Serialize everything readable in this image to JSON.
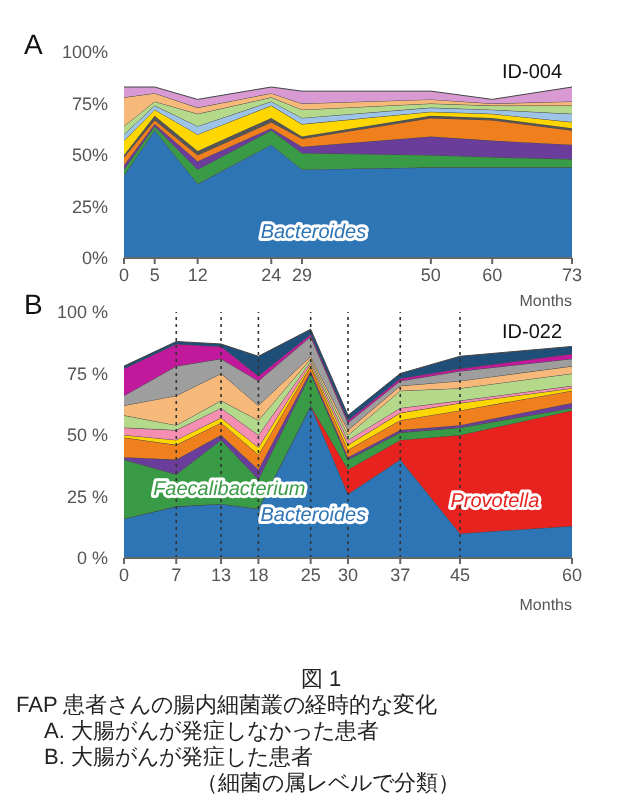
{
  "chart_data": [
    {
      "type": "area",
      "stacked": true,
      "title": "A",
      "subtitle": "ID-004",
      "xlabel": "Months",
      "x": [
        0,
        5,
        12,
        24,
        29,
        50,
        60,
        73
      ],
      "xlim": [
        0,
        73
      ],
      "xticks": [
        0,
        5,
        12,
        24,
        29,
        50,
        60,
        73
      ],
      "ylim": [
        0,
        100
      ],
      "yticks": [
        {
          "value": 0,
          "label": "0%"
        },
        {
          "value": 25,
          "label": "25%"
        },
        {
          "value": 50,
          "label": "50%"
        },
        {
          "value": 75,
          "label": "75%"
        },
        {
          "value": 100,
          "label": "100%"
        }
      ],
      "legend": false,
      "series": [
        {
          "name": "Bacteroides",
          "color": "#2e75b6",
          "values": [
            40,
            62,
            36,
            55,
            43,
            44,
            44,
            44
          ]
        },
        {
          "color": "#3a9b47",
          "values": [
            3,
            2,
            7,
            7,
            8,
            6,
            5,
            4
          ]
        },
        {
          "color": "#6a3d9a",
          "values": [
            2,
            1,
            4,
            1,
            3,
            9,
            8,
            7
          ]
        },
        {
          "color": "#f07f1e",
          "values": [
            4,
            2,
            3,
            3,
            4,
            9,
            10,
            7
          ]
        },
        {
          "color": "#555555",
          "values": [
            1,
            2,
            2,
            2,
            1,
            1,
            1,
            1
          ]
        },
        {
          "color": "#ffd700",
          "values": [
            7,
            3,
            8,
            6,
            6,
            2,
            2,
            3
          ]
        },
        {
          "color": "#9dc3e6",
          "values": [
            3,
            2,
            4,
            2,
            3,
            2,
            2,
            4
          ]
        },
        {
          "color": "#b5d98b",
          "values": [
            4,
            2,
            6,
            2,
            4,
            2,
            2,
            4
          ]
        },
        {
          "color": "#f7b97a",
          "values": [
            14,
            4,
            3,
            2,
            3,
            2,
            1,
            2
          ]
        },
        {
          "color": "#d99ad4",
          "values": [
            5,
            3,
            4,
            3,
            6,
            4,
            2,
            7
          ]
        }
      ]
    },
    {
      "type": "area",
      "stacked": true,
      "title": "B",
      "subtitle": "ID-022",
      "xlabel": "Months",
      "x": [
        0,
        7,
        13,
        18,
        25,
        30,
        37,
        45,
        60
      ],
      "xlim": [
        0,
        60
      ],
      "xticks": [
        0,
        7,
        13,
        18,
        25,
        30,
        37,
        45,
        60
      ],
      "ylim": [
        0,
        100
      ],
      "yticks": [
        {
          "value": 0,
          "label": "0 %"
        },
        {
          "value": 25,
          "label": "25 %"
        },
        {
          "value": 50,
          "label": "50 %"
        },
        {
          "value": 75,
          "label": "75 %"
        },
        {
          "value": 100,
          "label": "100 %"
        }
      ],
      "legend": false,
      "ref_lines": [
        {
          "axis": "x",
          "value": 7,
          "color": "#333333",
          "line_style": "dotted"
        },
        {
          "axis": "x",
          "value": 13,
          "color": "#333333",
          "line_style": "dotted"
        },
        {
          "axis": "x",
          "value": 18,
          "color": "#333333",
          "line_style": "dotted"
        },
        {
          "axis": "x",
          "value": 25,
          "color": "#333333",
          "line_style": "dotted"
        },
        {
          "axis": "x",
          "value": 30,
          "color": "#333333",
          "line_style": "dotted"
        },
        {
          "axis": "x",
          "value": 37,
          "color": "#333333",
          "line_style": "dotted"
        },
        {
          "axis": "x",
          "value": 45,
          "color": "#333333",
          "line_style": "dotted"
        }
      ],
      "series": [
        {
          "name": "Bacteroides",
          "color": "#2e75b6",
          "values": [
            16,
            21,
            22,
            20,
            62,
            26,
            40,
            10,
            13
          ]
        },
        {
          "name": "Provotella",
          "color": "#e8221e",
          "values": [
            0,
            0,
            0,
            0,
            0,
            10,
            8,
            40,
            47
          ]
        },
        {
          "name": "Faecalibacterium",
          "color": "#3a9b47",
          "values": [
            24,
            13,
            26,
            12,
            13,
            4,
            3,
            3,
            1
          ]
        },
        {
          "color": "#6a3d9a",
          "values": [
            1,
            6,
            2,
            4,
            1,
            1,
            1,
            1,
            2
          ]
        },
        {
          "color": "#f07f1e",
          "values": [
            8,
            6,
            5,
            6,
            2,
            3,
            4,
            6,
            5
          ]
        },
        {
          "color": "#ffd700",
          "values": [
            1,
            2,
            2,
            3,
            1,
            2,
            3,
            3,
            1
          ]
        },
        {
          "color": "#f48fb1",
          "values": [
            3,
            4,
            4,
            5,
            1,
            2,
            2,
            1,
            1
          ]
        },
        {
          "color": "#b5d98b",
          "values": [
            5,
            2,
            3,
            6,
            1,
            2,
            7,
            5,
            5
          ]
        },
        {
          "color": "#f7b97a",
          "values": [
            4,
            12,
            11,
            6,
            1,
            2,
            2,
            3,
            3
          ]
        },
        {
          "color": "#9e9e9e",
          "values": [
            4,
            12,
            6,
            10,
            8,
            3,
            2,
            4,
            3
          ]
        },
        {
          "color": "#c2189b",
          "values": [
            11,
            9,
            5,
            2,
            1,
            1,
            1,
            1,
            2
          ]
        },
        {
          "color": "#1f4e79",
          "values": [
            1,
            1,
            1,
            8,
            2,
            2,
            2,
            5,
            3
          ]
        }
      ],
      "annotations": [
        "図 1",
        "FAP 患者さんの腸内細菌叢の経時的な変化",
        "A. 大腸がんが発症しなかった患者",
        "B. 大腸がんが発症した患者",
        "（細菌の属レベルで分類）"
      ]
    }
  ]
}
